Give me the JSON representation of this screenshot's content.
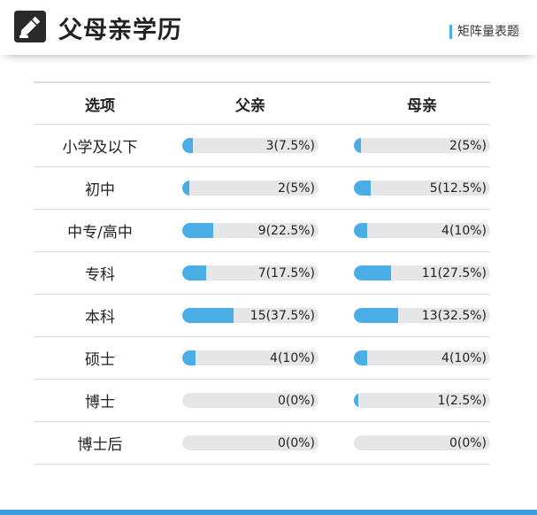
{
  "header": {
    "title": "父母亲学历",
    "tag": "矩阵量表题",
    "icon": "pencil-icon"
  },
  "table": {
    "columns": {
      "option": "选项",
      "father": "父亲",
      "mother": "母亲"
    },
    "rows": [
      {
        "label": "小学及以下",
        "father": {
          "text": "3(7.5%)",
          "percent": 7.5
        },
        "mother": {
          "text": "2(5%)",
          "percent": 5
        }
      },
      {
        "label": "初中",
        "father": {
          "text": "2(5%)",
          "percent": 5
        },
        "mother": {
          "text": "5(12.5%)",
          "percent": 12.5
        }
      },
      {
        "label": "中专/高中",
        "father": {
          "text": "9(22.5%)",
          "percent": 22.5
        },
        "mother": {
          "text": "4(10%)",
          "percent": 10
        }
      },
      {
        "label": "专科",
        "father": {
          "text": "7(17.5%)",
          "percent": 17.5
        },
        "mother": {
          "text": "11(27.5%)",
          "percent": 27.5
        }
      },
      {
        "label": "本科",
        "father": {
          "text": "15(37.5%)",
          "percent": 37.5
        },
        "mother": {
          "text": "13(32.5%)",
          "percent": 32.5
        }
      },
      {
        "label": "硕士",
        "father": {
          "text": "4(10%)",
          "percent": 10
        },
        "mother": {
          "text": "4(10%)",
          "percent": 10
        }
      },
      {
        "label": "博士",
        "father": {
          "text": "0(0%)",
          "percent": 0
        },
        "mother": {
          "text": "1(2.5%)",
          "percent": 2.5
        }
      },
      {
        "label": "博士后",
        "father": {
          "text": "0(0%)",
          "percent": 0
        },
        "mother": {
          "text": "0(0%)",
          "percent": 0
        }
      }
    ]
  },
  "colors": {
    "accent": "#4aaee6",
    "track": "#e6e6e9",
    "footer": "#3d9be0"
  }
}
